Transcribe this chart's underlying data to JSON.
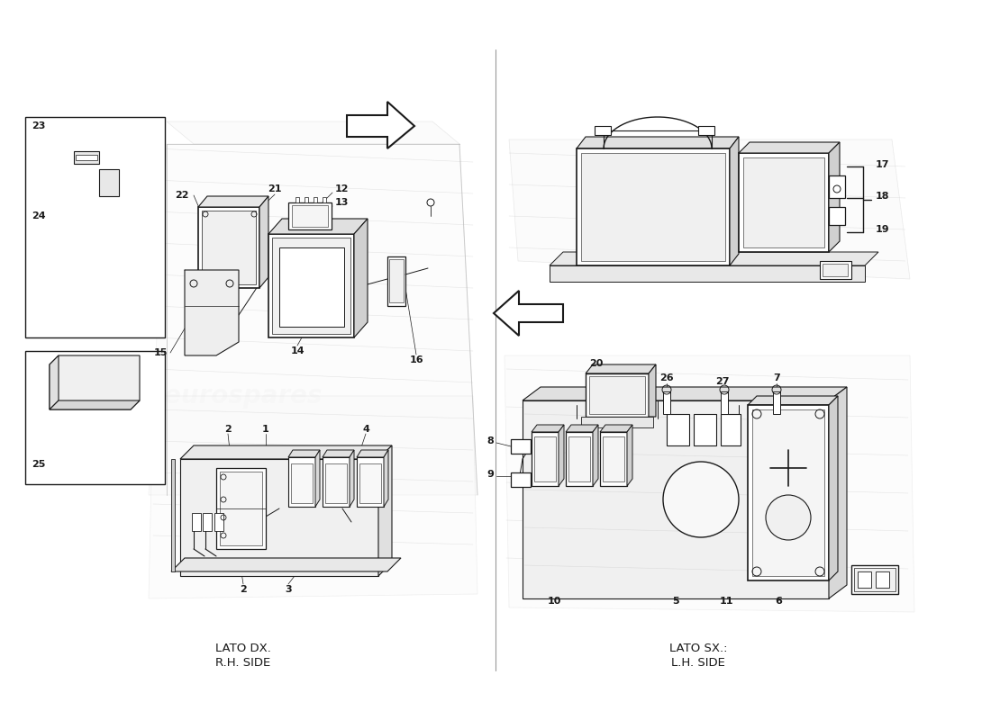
{
  "bg_color": "#ffffff",
  "lc": "#1a1a1a",
  "llc": "#b0b0b0",
  "glc": "#cccccc",
  "wc": "#d8d8d8",
  "wc2": "#c8c8c8",
  "divider_color": "#888888",
  "title_left_line1": "LATO DX.",
  "title_left_line2": "R.H. SIDE",
  "title_right_line1": "LATO SX.:",
  "title_right_line2": "L.H. SIDE",
  "watermark": "eurospares",
  "lbl_fs": 8.0,
  "title_fs": 9.5,
  "wm_fs": 20,
  "wm_alpha": 0.18
}
